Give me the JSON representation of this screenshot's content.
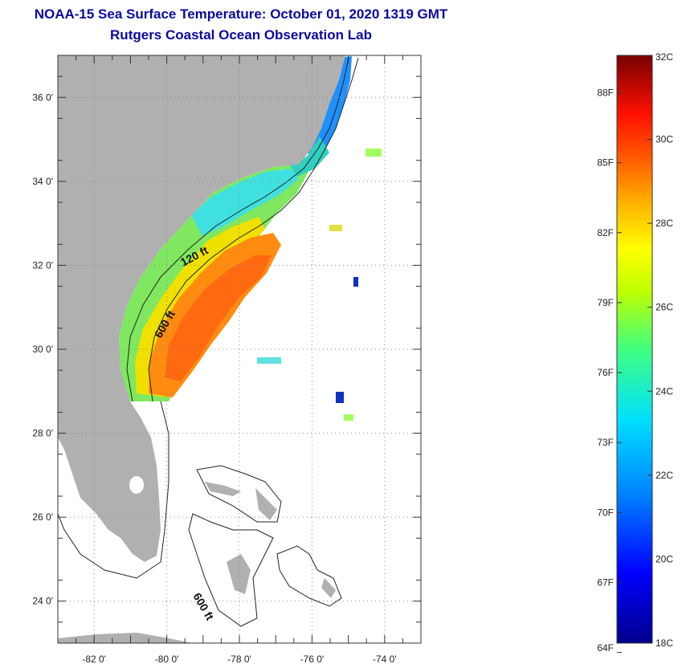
{
  "header": {
    "title": "NOAA-15 Sea Surface Temperature:  October 01, 2020 1319 GMT",
    "subtitle": "Rutgers Coastal Ocean Observation Lab"
  },
  "map": {
    "lat_range": [
      23,
      37
    ],
    "lon_range": [
      -83,
      -73
    ],
    "lat_ticks": [
      {
        "value": 24,
        "label": "24 0'"
      },
      {
        "value": 26,
        "label": "26 0'"
      },
      {
        "value": 28,
        "label": "28 0'"
      },
      {
        "value": 30,
        "label": "30 0'"
      },
      {
        "value": 32,
        "label": "32 0'"
      },
      {
        "value": 34,
        "label": "34 0'"
      },
      {
        "value": 36,
        "label": "36 0'"
      }
    ],
    "lon_ticks": [
      {
        "value": -82,
        "label": "-82 0'"
      },
      {
        "value": -80,
        "label": "-80 0'"
      },
      {
        "value": -78,
        "label": "-78 0'"
      },
      {
        "value": -76,
        "label": "-76 0'"
      },
      {
        "value": -74,
        "label": "-74 0'"
      }
    ],
    "contour_labels": [
      "120 ft",
      "600 ft",
      "600 ft"
    ],
    "colors": {
      "land": "#b0b0b0",
      "ocean": "#ffffff",
      "grid": "#888888",
      "contour": "#222222"
    }
  },
  "colorbar": {
    "min_c": 18,
    "max_c": 32,
    "celsius_labels": [
      "32C",
      "30C",
      "28C",
      "26C",
      "24C",
      "22C",
      "20C",
      "18C"
    ],
    "fahrenheit_labels": [
      "88F",
      "85F",
      "82F",
      "79F",
      "76F",
      "73F",
      "70F",
      "67F",
      "64F"
    ]
  }
}
